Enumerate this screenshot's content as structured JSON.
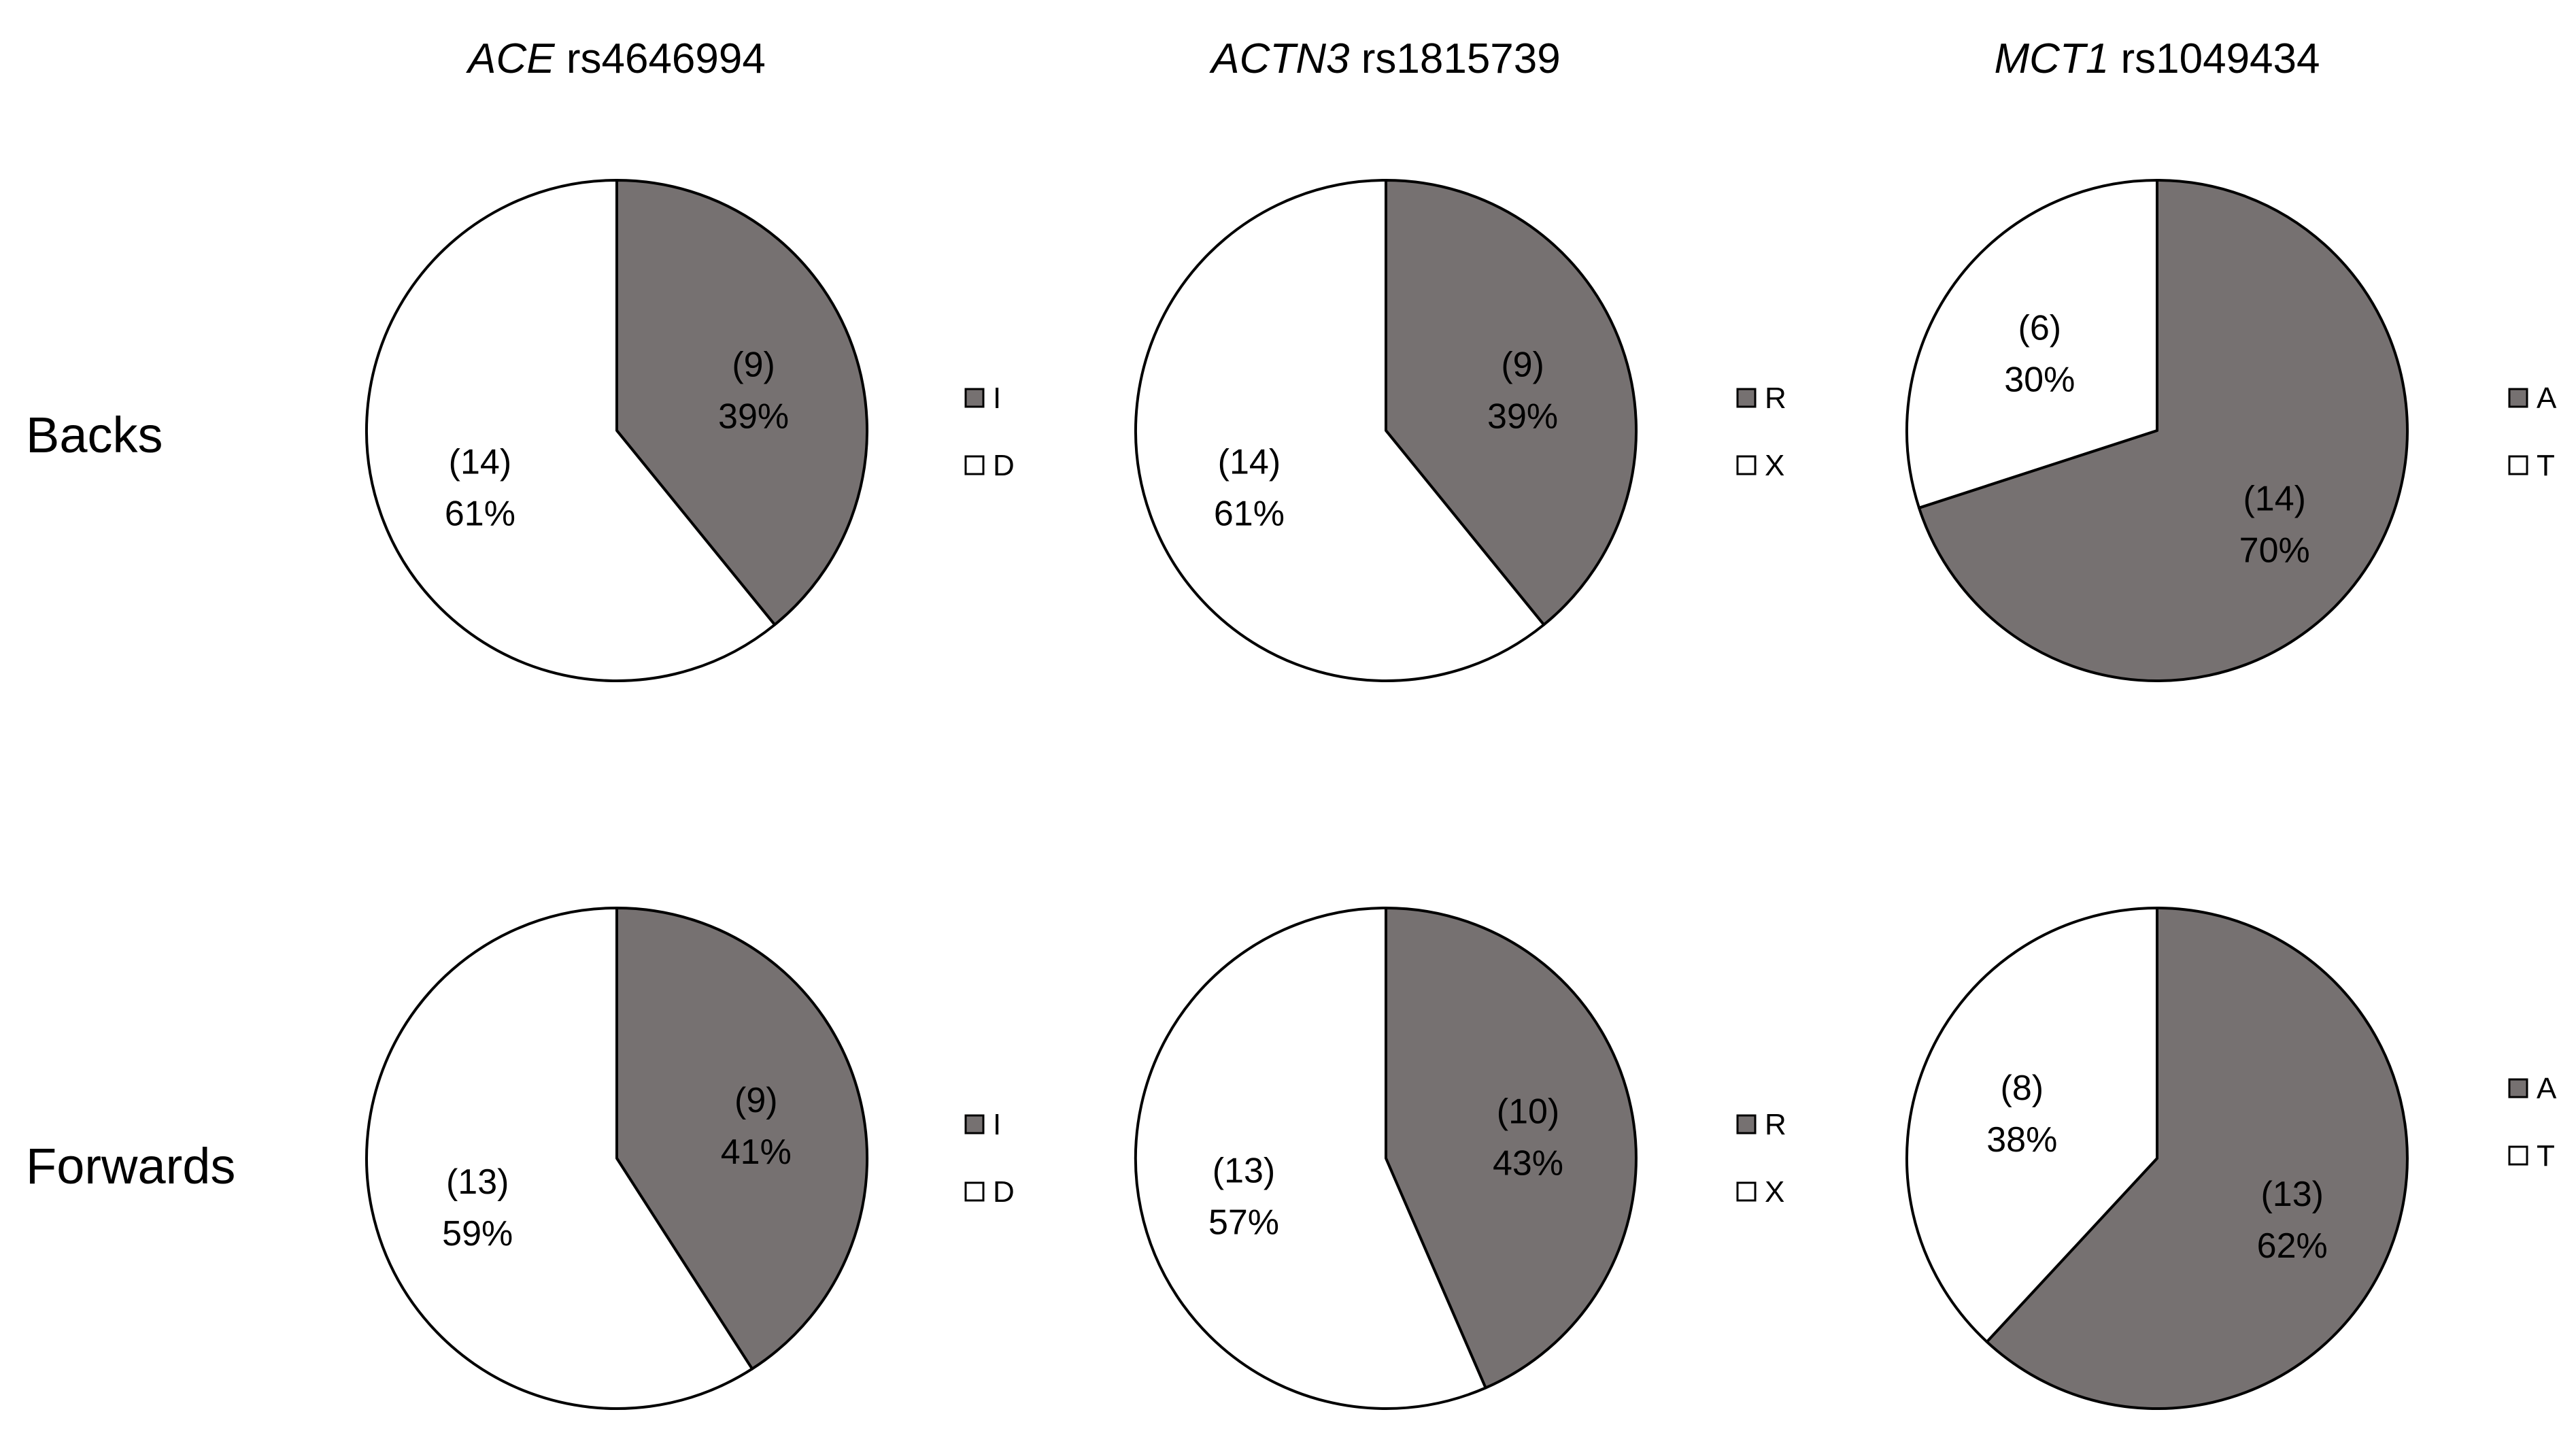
{
  "colors": {
    "dark": "#767171",
    "light": "#ffffff",
    "outline": "#000000"
  },
  "chart_data": {
    "type": "pie",
    "columns": [
      {
        "gene": "ACE",
        "snp": "rs4646994",
        "legend": [
          "I",
          "D"
        ]
      },
      {
        "gene": "ACTN3",
        "snp": "rs1815739",
        "legend": [
          "R",
          "X"
        ]
      },
      {
        "gene": "MCT1",
        "snp": "rs1049434",
        "legend": [
          "A",
          "T"
        ]
      }
    ],
    "rows": [
      "Backs",
      "Forwards"
    ],
    "charts": [
      {
        "row": "Backs",
        "column": "ACE rs4646994",
        "slices": [
          {
            "category": "I",
            "count": 9,
            "count_label": "(9)",
            "percent": 39,
            "percent_label": "39%"
          },
          {
            "category": "D",
            "count": 14,
            "count_label": "(14)",
            "percent": 61,
            "percent_label": "61%"
          }
        ]
      },
      {
        "row": "Backs",
        "column": "ACTN3 rs1815739",
        "slices": [
          {
            "category": "R",
            "count": 9,
            "count_label": "(9)",
            "percent": 39,
            "percent_label": "39%"
          },
          {
            "category": "X",
            "count": 14,
            "count_label": "(14)",
            "percent": 61,
            "percent_label": "61%"
          }
        ]
      },
      {
        "row": "Backs",
        "column": "MCT1 rs1049434",
        "slices": [
          {
            "category": "A",
            "count": 14,
            "count_label": "(14)",
            "percent": 70,
            "percent_label": "70%"
          },
          {
            "category": "T",
            "count": 6,
            "count_label": "(6)",
            "percent": 30,
            "percent_label": "30%"
          }
        ]
      },
      {
        "row": "Forwards",
        "column": "ACE rs4646994",
        "slices": [
          {
            "category": "I",
            "count": 9,
            "count_label": "(9)",
            "percent": 41,
            "percent_label": "41%"
          },
          {
            "category": "D",
            "count": 13,
            "count_label": "(13)",
            "percent": 59,
            "percent_label": "59%"
          }
        ]
      },
      {
        "row": "Forwards",
        "column": "ACTN3 rs1815739",
        "slices": [
          {
            "category": "R",
            "count": 10,
            "count_label": "(10)",
            "percent": 43,
            "percent_label": "43%"
          },
          {
            "category": "X",
            "count": 13,
            "count_label": "(13)",
            "percent": 57,
            "percent_label": "57%"
          }
        ]
      },
      {
        "row": "Forwards",
        "column": "MCT1 rs1049434",
        "slices": [
          {
            "category": "A",
            "count": 13,
            "count_label": "(13)",
            "percent": 62,
            "percent_label": "62%"
          },
          {
            "category": "T",
            "count": 8,
            "count_label": "(8)",
            "percent": 38,
            "percent_label": "38%"
          }
        ]
      }
    ]
  }
}
